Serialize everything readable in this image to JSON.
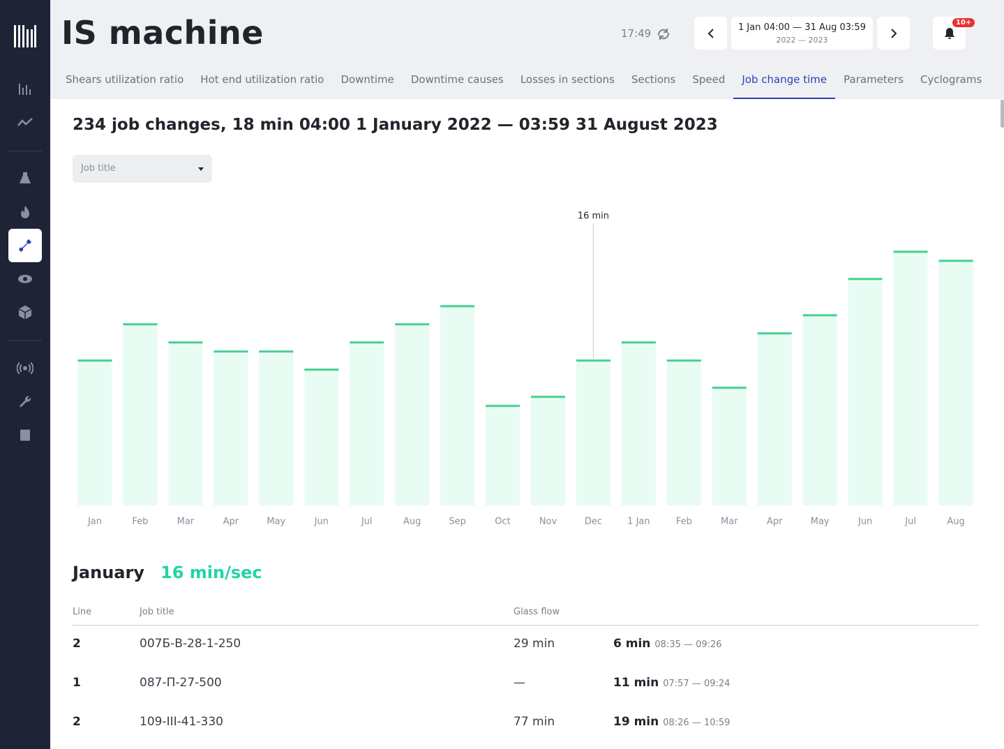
{
  "header": {
    "title": "IS machine",
    "time": "17:49",
    "range": {
      "dates": "1 Jan 04:00 — 31 Aug 03:59",
      "years": "2022 — 2023"
    },
    "notifications": "10+"
  },
  "tabs": [
    {
      "label": "Shears utilization ratio",
      "active": false
    },
    {
      "label": "Hot end utilization ratio",
      "active": false
    },
    {
      "label": "Downtime",
      "active": false
    },
    {
      "label": "Downtime causes",
      "active": false
    },
    {
      "label": "Losses in sections",
      "active": false
    },
    {
      "label": "Sections",
      "active": false
    },
    {
      "label": "Speed",
      "active": false
    },
    {
      "label": "Job change time",
      "active": true
    },
    {
      "label": "Parameters",
      "active": false
    },
    {
      "label": "Cyclograms",
      "active": false
    }
  ],
  "summary": "234 job changes, 18 min 04:00 1 January 2022 — 03:59 31 August 2023",
  "filter": "Job title",
  "chart_data": {
    "type": "bar",
    "categories": [
      "Jan",
      "Feb",
      "Mar",
      "Apr",
      "May",
      "Jun",
      "Jul",
      "Aug",
      "Sep",
      "Oct",
      "Nov",
      "Dec",
      "1 Jan",
      "Feb",
      "Mar",
      "Apr",
      "May",
      "Jun",
      "Jul",
      "Aug"
    ],
    "values": [
      16,
      20,
      18,
      17,
      17,
      15,
      18,
      20,
      22,
      11,
      12,
      16,
      18,
      16,
      13,
      19,
      21,
      25,
      28,
      27
    ],
    "value_labels": [
      null,
      null,
      null,
      null,
      null,
      null,
      null,
      null,
      null,
      null,
      null,
      "16 min",
      null,
      null,
      null,
      null,
      null,
      null,
      null,
      null
    ],
    "ylim": [
      0,
      30
    ],
    "color": "#e8fcf4",
    "edge_color": "#45cf8f"
  },
  "detail": {
    "month": "January",
    "rate": "16 min/sec",
    "columns": [
      "Line",
      "Job title",
      "Glass flow"
    ],
    "rows": [
      {
        "line": "2",
        "job": "007Б-В-28-1-250",
        "flow": "29 min",
        "duration": "6 min",
        "interval": "08:35 — 09:26"
      },
      {
        "line": "1",
        "job": "087-П-27-500",
        "flow": "—",
        "duration": "11 min",
        "interval": "07:57 — 09:24"
      },
      {
        "line": "2",
        "job": "109-III-41-330",
        "flow": "77 min",
        "duration": "19 min",
        "interval": "08:26 — 10:59"
      }
    ]
  }
}
